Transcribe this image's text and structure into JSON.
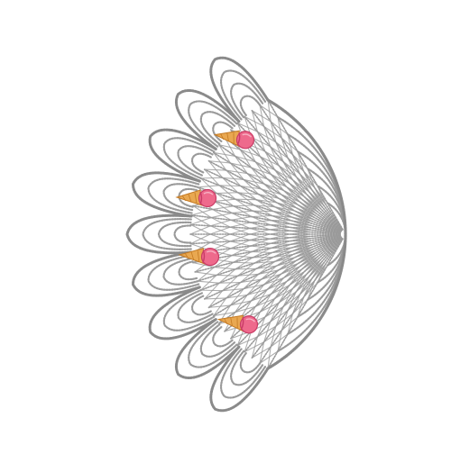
{
  "design": {
    "background_color": "#ffffff",
    "lace_color": "#9a9a9a",
    "lace_dark_color": "#8a8a8a",
    "motif_icon": "ice-cream-cone-icon",
    "scallop_count": 9,
    "motif_count": 4,
    "cone_color": "#e9a851",
    "cone_outline_color": "#c47a24",
    "scoop_color": "#ee6a8c",
    "scoop_outline_color": "#c93c66"
  }
}
